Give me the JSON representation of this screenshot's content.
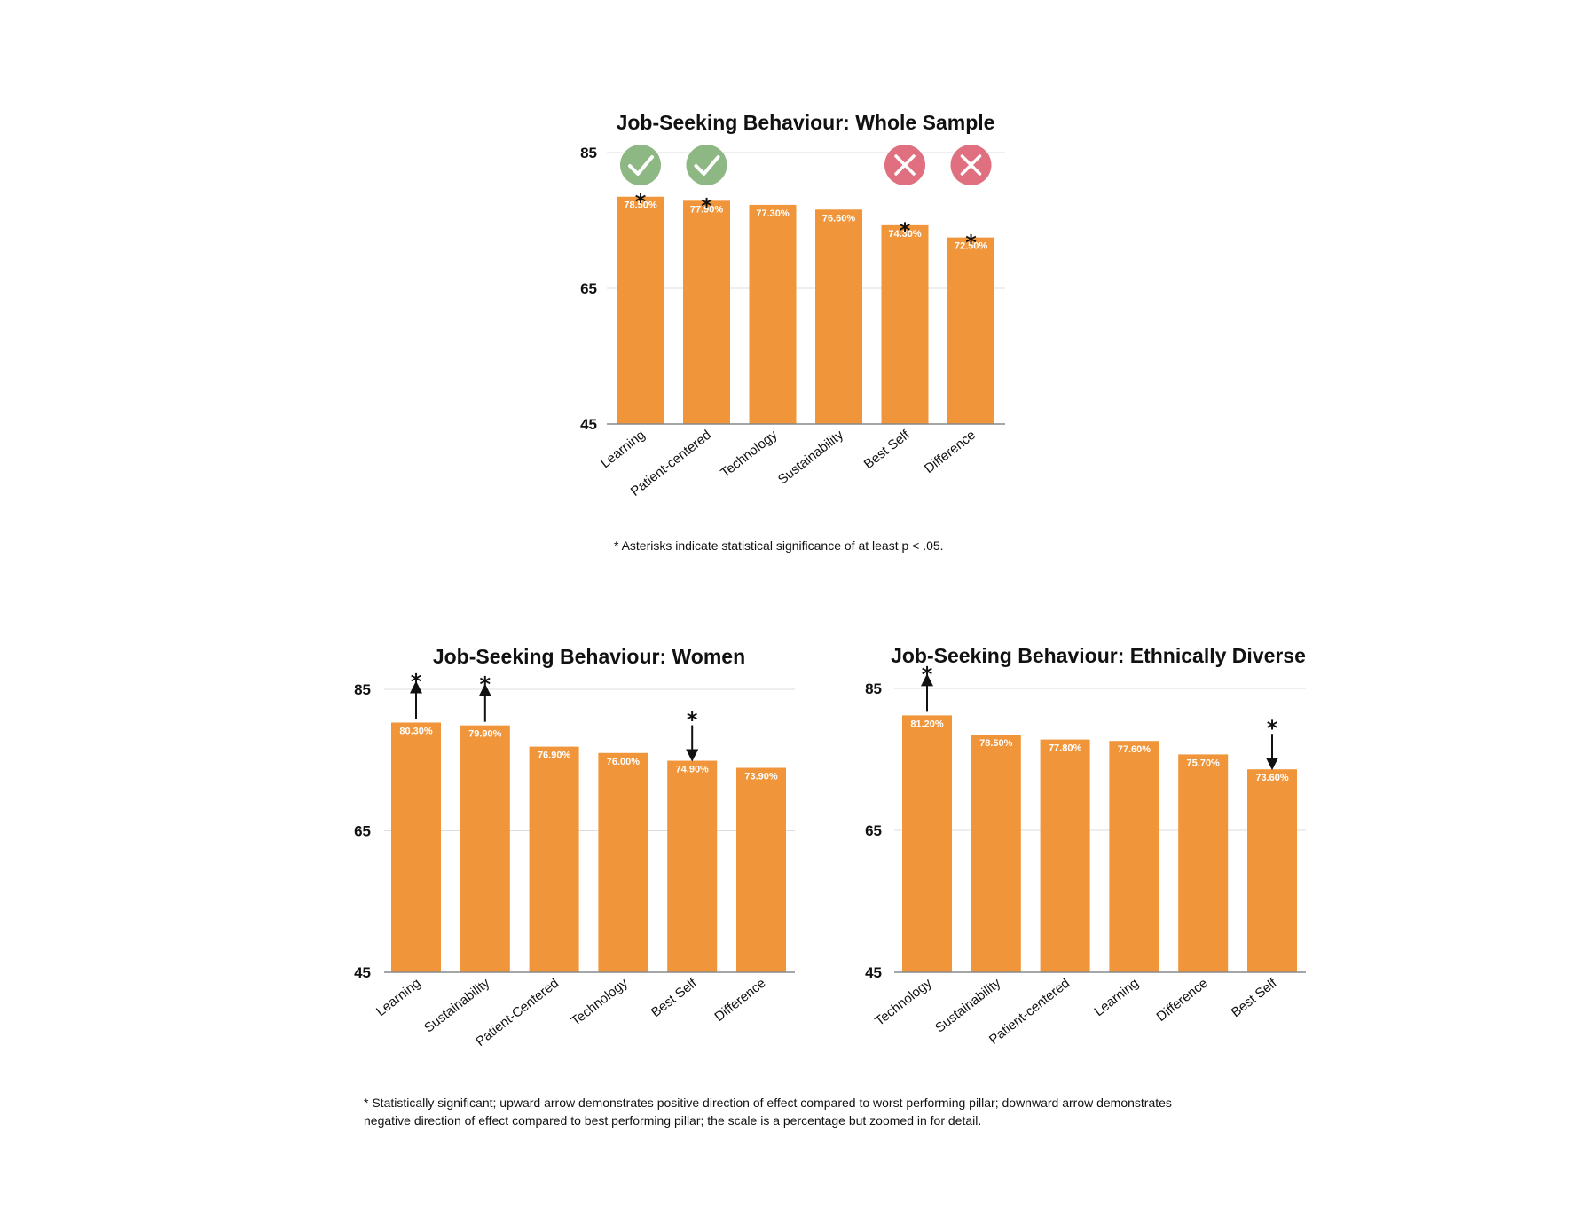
{
  "colors": {
    "bar": "#F0953A",
    "grid": "#DDDDDD",
    "axis": "#888888",
    "check_circle": "#8DB884",
    "cross_circle": "#E07080"
  },
  "chart_data": [
    {
      "type": "bar",
      "title": "Job-Seeking Behaviour: Whole Sample",
      "categories": [
        "Learning",
        "Patient-centered",
        "Technology",
        "Sustainability",
        "Best Self",
        "Difference"
      ],
      "values": [
        78.5,
        77.9,
        77.3,
        76.6,
        74.3,
        72.5
      ],
      "data_labels": [
        "78.50%",
        "77.90%",
        "77.30%",
        "76.60%",
        "74.30%",
        "72.50%"
      ],
      "significant": [
        true,
        true,
        false,
        false,
        true,
        true
      ],
      "markers": [
        "check",
        "check",
        "",
        "",
        "cross",
        "cross"
      ],
      "arrows": [
        "",
        "",
        "",
        "",
        "",
        ""
      ],
      "ylim": [
        45,
        85
      ],
      "yticks": [
        "45",
        "65",
        "85"
      ],
      "grid": true,
      "xlabel": "",
      "ylabel": ""
    },
    {
      "type": "bar",
      "title": "Job-Seeking Behaviour: Women",
      "categories": [
        "Learning",
        "Sustainability",
        "Patient-Centered",
        "Technology",
        "Best Self",
        "Difference"
      ],
      "values": [
        80.3,
        79.9,
        76.9,
        76.0,
        74.9,
        73.9
      ],
      "data_labels": [
        "80.30%",
        "79.90%",
        "76.90%",
        "76.00%",
        "74.90%",
        "73.90%"
      ],
      "significant": [
        true,
        true,
        false,
        false,
        true,
        false
      ],
      "markers": [
        "",
        "",
        "",
        "",
        "",
        ""
      ],
      "arrows": [
        "up",
        "up",
        "",
        "",
        "down",
        ""
      ],
      "ylim": [
        45,
        85
      ],
      "yticks": [
        "45",
        "65",
        "85"
      ],
      "grid": true,
      "xlabel": "",
      "ylabel": ""
    },
    {
      "type": "bar",
      "title": "Job-Seeking Behaviour: Ethnically Diverse",
      "categories": [
        "Technology",
        "Sustainability",
        "Patient-centered",
        "Learning",
        "Difference",
        "Best Self"
      ],
      "values": [
        81.2,
        78.5,
        77.8,
        77.6,
        75.7,
        73.6
      ],
      "data_labels": [
        "81.20%",
        "78.50%",
        "77.80%",
        "77.60%",
        "75.70%",
        "73.60%"
      ],
      "significant": [
        true,
        false,
        false,
        false,
        false,
        true
      ],
      "markers": [
        "",
        "",
        "",
        "",
        "",
        ""
      ],
      "arrows": [
        "up",
        "",
        "",
        "",
        "",
        "down"
      ],
      "ylim": [
        45,
        85
      ],
      "yticks": [
        "45",
        "65",
        "85"
      ],
      "grid": true,
      "xlabel": "",
      "ylabel": ""
    }
  ],
  "significance_symbol": "*",
  "footnotes": {
    "top": "*  Asterisks indicate statistical significance of at least p < .05.",
    "bottom_line1": "* Statistically significant; upward arrow demonstrates positive direction of effect compared to worst performing pillar; downward arrow demonstrates",
    "bottom_line2": "negative direction of effect compared to best performing pillar; the scale is a percentage but zoomed in for detail."
  }
}
